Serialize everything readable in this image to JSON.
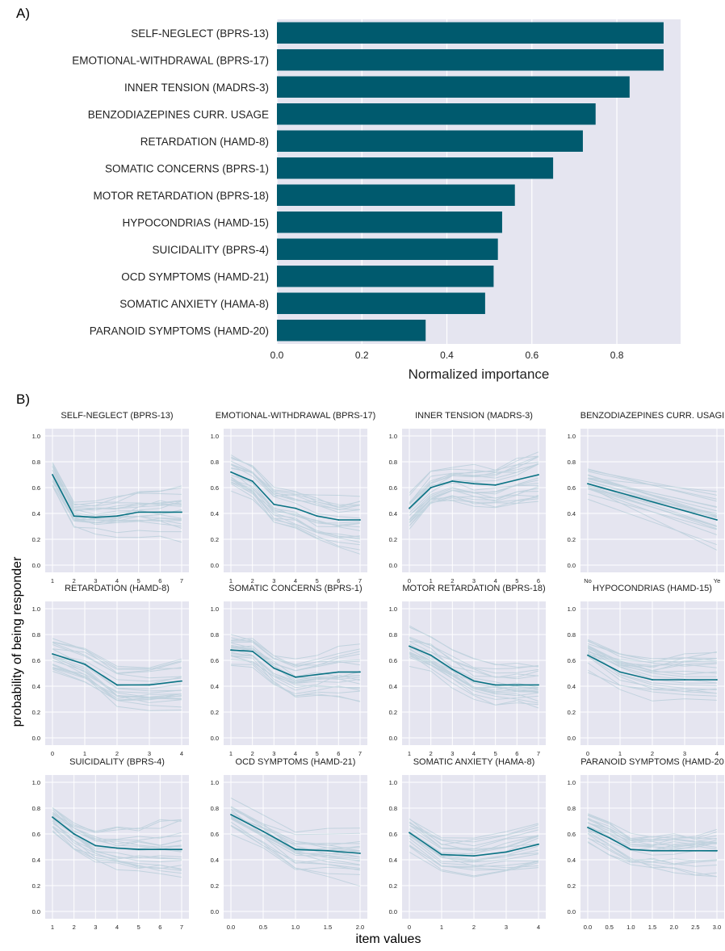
{
  "panel_a": {
    "letter": "A)"
  },
  "panel_b": {
    "letter": "B)",
    "ylabel": "probability of being responder",
    "xlabel": "item values"
  },
  "colors": {
    "accent": "#005a6e",
    "line": "#0a7384",
    "plot_bg": "#e5e5f0",
    "grid": "#ffffff"
  },
  "chart_data": [
    {
      "type": "bar",
      "orientation": "horizontal",
      "categories": [
        "SELF-NEGLECT (BPRS-13)",
        "EMOTIONAL-WITHDRAWAL (BPRS-17)",
        "INNER TENSION (MADRS-3)",
        "BENZODIAZEPINES CURR. USAGE",
        "RETARDATION (HAMD-8)",
        "SOMATIC CONCERNS (BPRS-1)",
        "MOTOR RETARDATION (BPRS-18)",
        "HYPOCONDRIAS (HAMD-15)",
        "SUICIDALITY (BPRS-4)",
        "OCD SYMPTOMS (HAMD-21)",
        "SOMATIC ANXIETY (HAMA-8)",
        "PARANOID SYMPTOMS (HAMD-20)"
      ],
      "values": [
        0.91,
        0.91,
        0.83,
        0.75,
        0.72,
        0.65,
        0.56,
        0.53,
        0.52,
        0.51,
        0.49,
        0.35
      ],
      "xlabel": "Normalized importance",
      "xlim": [
        0,
        0.95
      ],
      "xticks": [
        "0.0",
        "0.2",
        "0.4",
        "0.6",
        "0.8"
      ],
      "grid": true
    },
    {
      "type": "line",
      "title": "SELF-NEGLECT (BPRS-13)",
      "x": [
        1,
        2,
        3,
        4,
        5,
        6,
        7
      ],
      "y": [
        0.7,
        0.38,
        0.37,
        0.38,
        0.41,
        0.41,
        0.41
      ],
      "xticks": [
        "1",
        "2",
        "3",
        "4",
        "5",
        "6",
        "7"
      ],
      "ylim": [
        0,
        1
      ],
      "yticks": [
        "0.0",
        "0.2",
        "0.4",
        "0.6",
        "0.8",
        "1.0"
      ]
    },
    {
      "type": "line",
      "title": "EMOTIONAL-WITHDRAWAL (BPRS-17)",
      "x": [
        1,
        2,
        3,
        4,
        5,
        6,
        7
      ],
      "y": [
        0.72,
        0.65,
        0.47,
        0.44,
        0.38,
        0.35,
        0.35
      ],
      "xticks": [
        "1",
        "2",
        "3",
        "4",
        "5",
        "6",
        "7"
      ],
      "ylim": [
        0,
        1
      ],
      "yticks": [
        "0.0",
        "0.2",
        "0.4",
        "0.6",
        "0.8",
        "1.0"
      ]
    },
    {
      "type": "line",
      "title": "INNER TENSION (MADRS-3)",
      "x": [
        0,
        1,
        2,
        3,
        4,
        5,
        6
      ],
      "y": [
        0.44,
        0.6,
        0.65,
        0.63,
        0.62,
        0.66,
        0.7
      ],
      "xticks": [
        "0",
        "1",
        "2",
        "3",
        "4",
        "5",
        "6"
      ],
      "ylim": [
        0,
        1
      ],
      "yticks": [
        "0.0",
        "0.2",
        "0.4",
        "0.6",
        "0.8",
        "1.0"
      ]
    },
    {
      "type": "line",
      "title": "BENZODIAZEPINES CURR. USAGI",
      "x": [
        0,
        1
      ],
      "y": [
        0.63,
        0.35
      ],
      "xticks": [
        "No",
        "Ye"
      ],
      "ylim": [
        0,
        1
      ],
      "yticks": [
        "0.0",
        "0.2",
        "0.4",
        "0.6",
        "0.8",
        "1.0"
      ]
    },
    {
      "type": "line",
      "title": "RETARDATION (HAMD-8)",
      "x": [
        0,
        1,
        2,
        3,
        4
      ],
      "y": [
        0.65,
        0.57,
        0.41,
        0.41,
        0.44
      ],
      "xticks": [
        "0",
        "1",
        "2",
        "3",
        "4"
      ],
      "ylim": [
        0,
        1
      ],
      "yticks": [
        "0.0",
        "0.2",
        "0.4",
        "0.6",
        "0.8",
        "1.0"
      ]
    },
    {
      "type": "line",
      "title": "SOMATIC CONCERNS (BPRS-1)",
      "x": [
        1,
        2,
        3,
        4,
        5,
        6,
        7
      ],
      "y": [
        0.68,
        0.67,
        0.54,
        0.47,
        0.49,
        0.51,
        0.51
      ],
      "xticks": [
        "1",
        "2",
        "3",
        "4",
        "5",
        "6",
        "7"
      ],
      "ylim": [
        0,
        1
      ],
      "yticks": [
        "0.0",
        "0.2",
        "0.4",
        "0.6",
        "0.8",
        "1.0"
      ]
    },
    {
      "type": "line",
      "title": "MOTOR RETARDATION (BPRS-18)",
      "x": [
        1,
        2,
        3,
        4,
        5,
        6,
        7
      ],
      "y": [
        0.71,
        0.64,
        0.53,
        0.44,
        0.41,
        0.41,
        0.41
      ],
      "xticks": [
        "1",
        "2",
        "3",
        "4",
        "5",
        "6",
        "7"
      ],
      "ylim": [
        0,
        1
      ],
      "yticks": [
        "0.0",
        "0.2",
        "0.4",
        "0.6",
        "0.8",
        "1.0"
      ]
    },
    {
      "type": "line",
      "title": "HYPOCONDRIAS (HAMD-15)",
      "x": [
        0,
        1,
        2,
        3,
        4
      ],
      "y": [
        0.64,
        0.51,
        0.45,
        0.45,
        0.45
      ],
      "xticks": [
        "0",
        "1",
        "2",
        "3",
        "4"
      ],
      "ylim": [
        0,
        1
      ],
      "yticks": [
        "0.0",
        "0.2",
        "0.4",
        "0.6",
        "0.8",
        "1.0"
      ]
    },
    {
      "type": "line",
      "title": "SUICIDALITY (BPRS-4)",
      "x": [
        1,
        2,
        3,
        4,
        5,
        6,
        7
      ],
      "y": [
        0.73,
        0.6,
        0.51,
        0.49,
        0.48,
        0.48,
        0.48
      ],
      "xticks": [
        "1",
        "2",
        "3",
        "4",
        "5",
        "6",
        "7"
      ],
      "ylim": [
        0,
        1
      ],
      "yticks": [
        "0.0",
        "0.2",
        "0.4",
        "0.6",
        "0.8",
        "1.0"
      ]
    },
    {
      "type": "line",
      "title": "OCD SYMPTOMS (HAMD-21)",
      "x": [
        0,
        0.5,
        1,
        1.5,
        2
      ],
      "y": [
        0.75,
        0.62,
        0.48,
        0.47,
        0.45
      ],
      "xticks": [
        "0.0",
        "0.5",
        "1.0",
        "1.5",
        "2.0"
      ],
      "ylim": [
        0,
        1
      ],
      "yticks": [
        "0.0",
        "0.2",
        "0.4",
        "0.6",
        "0.8",
        "1.0"
      ]
    },
    {
      "type": "line",
      "title": "SOMATIC ANXIETY (HAMA-8)",
      "x": [
        0,
        1,
        2,
        3,
        4
      ],
      "y": [
        0.61,
        0.44,
        0.43,
        0.46,
        0.52
      ],
      "xticks": [
        "0",
        "1",
        "2",
        "3",
        "4"
      ],
      "ylim": [
        0,
        1
      ],
      "yticks": [
        "0.0",
        "0.2",
        "0.4",
        "0.6",
        "0.8",
        "1.0"
      ]
    },
    {
      "type": "line",
      "title": "PARANOID SYMPTOMS (HAMD-20",
      "x": [
        0,
        0.5,
        1,
        1.5,
        2,
        2.5,
        3
      ],
      "y": [
        0.65,
        0.57,
        0.48,
        0.47,
        0.47,
        0.47,
        0.47
      ],
      "xticks": [
        "0.0",
        "0.5",
        "1.0",
        "1.5",
        "2.0",
        "2.5",
        "3.0"
      ],
      "ylim": [
        0,
        1
      ],
      "yticks": [
        "0.0",
        "0.2",
        "0.4",
        "0.6",
        "0.8",
        "1.0"
      ]
    }
  ]
}
